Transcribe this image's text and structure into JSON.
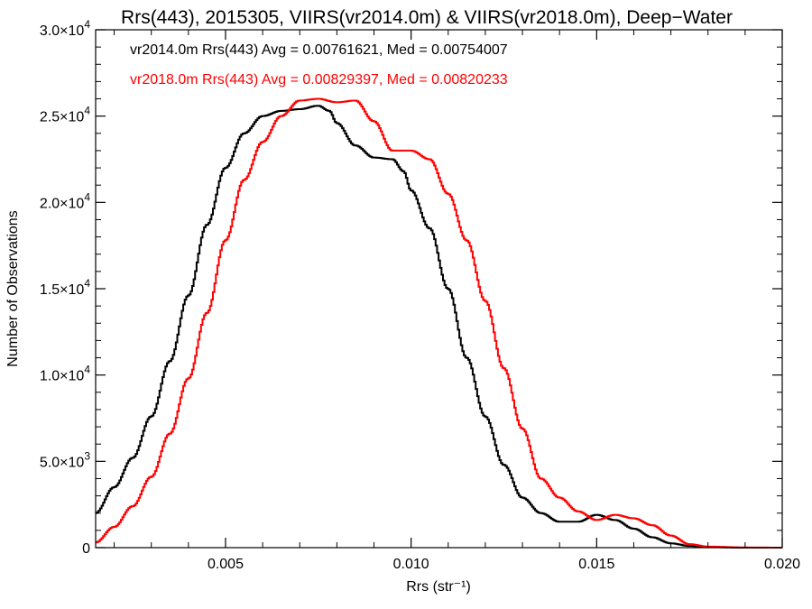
{
  "chart_data": {
    "type": "line",
    "style": "step-histogram",
    "title": "Rrs(443), 2015305, VIIRS(vr2014.0m) & VIIRS(vr2018.0m), Deep−Water",
    "xlabel": "Rrs (str⁻¹)",
    "ylabel": "Number of Observations",
    "xlim": [
      0.0015,
      0.02
    ],
    "ylim": [
      0,
      30000
    ],
    "x_ticks": [
      0.005,
      0.01,
      0.015,
      0.02
    ],
    "x_tick_labels": [
      "0.005",
      "0.010",
      "0.015",
      "0.020"
    ],
    "y_ticks": [
      0,
      5000,
      10000,
      15000,
      20000,
      25000,
      30000
    ],
    "y_tick_labels": [
      {
        "mantissa": "0",
        "exp": ""
      },
      {
        "mantissa": "5.0×10",
        "exp": "3"
      },
      {
        "mantissa": "1.0×10",
        "exp": "4"
      },
      {
        "mantissa": "1.5×10",
        "exp": "4"
      },
      {
        "mantissa": "2.0×10",
        "exp": "4"
      },
      {
        "mantissa": "2.5×10",
        "exp": "4"
      },
      {
        "mantissa": "3.0×10",
        "exp": "4"
      }
    ],
    "legend": [
      {
        "text": "vr2014.0m Rrs(443) Avg = 0.00761621, Med = 0.00754007",
        "color": "#000000"
      },
      {
        "text": "vr2018.0m Rrs(443) Avg = 0.00829397, Med = 0.00820233",
        "color": "#ff0000"
      }
    ],
    "legend_position": "top-left",
    "grid": false,
    "series": [
      {
        "color": "#000000",
        "points": [
          [
            0.0015,
            2000
          ],
          [
            0.002,
            3500
          ],
          [
            0.0025,
            5200
          ],
          [
            0.003,
            7600
          ],
          [
            0.0035,
            10800
          ],
          [
            0.004,
            14600
          ],
          [
            0.0045,
            18700
          ],
          [
            0.005,
            22000
          ],
          [
            0.0055,
            24000
          ],
          [
            0.006,
            25000
          ],
          [
            0.0065,
            25300
          ],
          [
            0.007,
            25400
          ],
          [
            0.0075,
            25600
          ],
          [
            0.0078,
            25300
          ],
          [
            0.008,
            24600
          ],
          [
            0.0085,
            23300
          ],
          [
            0.009,
            22600
          ],
          [
            0.0095,
            22500
          ],
          [
            0.0098,
            21800
          ],
          [
            0.01,
            20700
          ],
          [
            0.0105,
            18500
          ],
          [
            0.011,
            15000
          ],
          [
            0.0115,
            11000
          ],
          [
            0.012,
            7600
          ],
          [
            0.0125,
            4800
          ],
          [
            0.013,
            2900
          ],
          [
            0.0135,
            2000
          ],
          [
            0.014,
            1500
          ],
          [
            0.0145,
            1500
          ],
          [
            0.015,
            1900
          ],
          [
            0.0155,
            1600
          ],
          [
            0.016,
            1100
          ],
          [
            0.0165,
            600
          ],
          [
            0.017,
            250
          ],
          [
            0.0175,
            100
          ],
          [
            0.018,
            30
          ],
          [
            0.019,
            0
          ],
          [
            0.02,
            0
          ]
        ]
      },
      {
        "color": "#ff0000",
        "points": [
          [
            0.0015,
            300
          ],
          [
            0.002,
            1200
          ],
          [
            0.0025,
            2400
          ],
          [
            0.003,
            4100
          ],
          [
            0.0035,
            6600
          ],
          [
            0.004,
            9800
          ],
          [
            0.0045,
            13600
          ],
          [
            0.005,
            17800
          ],
          [
            0.0055,
            21300
          ],
          [
            0.006,
            23500
          ],
          [
            0.0065,
            25000
          ],
          [
            0.007,
            25900
          ],
          [
            0.0075,
            26000
          ],
          [
            0.008,
            25800
          ],
          [
            0.0085,
            25900
          ],
          [
            0.009,
            24700
          ],
          [
            0.0095,
            23000
          ],
          [
            0.01,
            23000
          ],
          [
            0.0105,
            22500
          ],
          [
            0.011,
            20500
          ],
          [
            0.0115,
            17800
          ],
          [
            0.012,
            14300
          ],
          [
            0.0125,
            10400
          ],
          [
            0.013,
            6900
          ],
          [
            0.0135,
            4000
          ],
          [
            0.014,
            2900
          ],
          [
            0.0145,
            2100
          ],
          [
            0.015,
            1600
          ],
          [
            0.0155,
            1900
          ],
          [
            0.016,
            1700
          ],
          [
            0.0165,
            1300
          ],
          [
            0.017,
            700
          ],
          [
            0.0175,
            200
          ],
          [
            0.018,
            60
          ],
          [
            0.019,
            10
          ],
          [
            0.02,
            0
          ]
        ]
      }
    ]
  }
}
